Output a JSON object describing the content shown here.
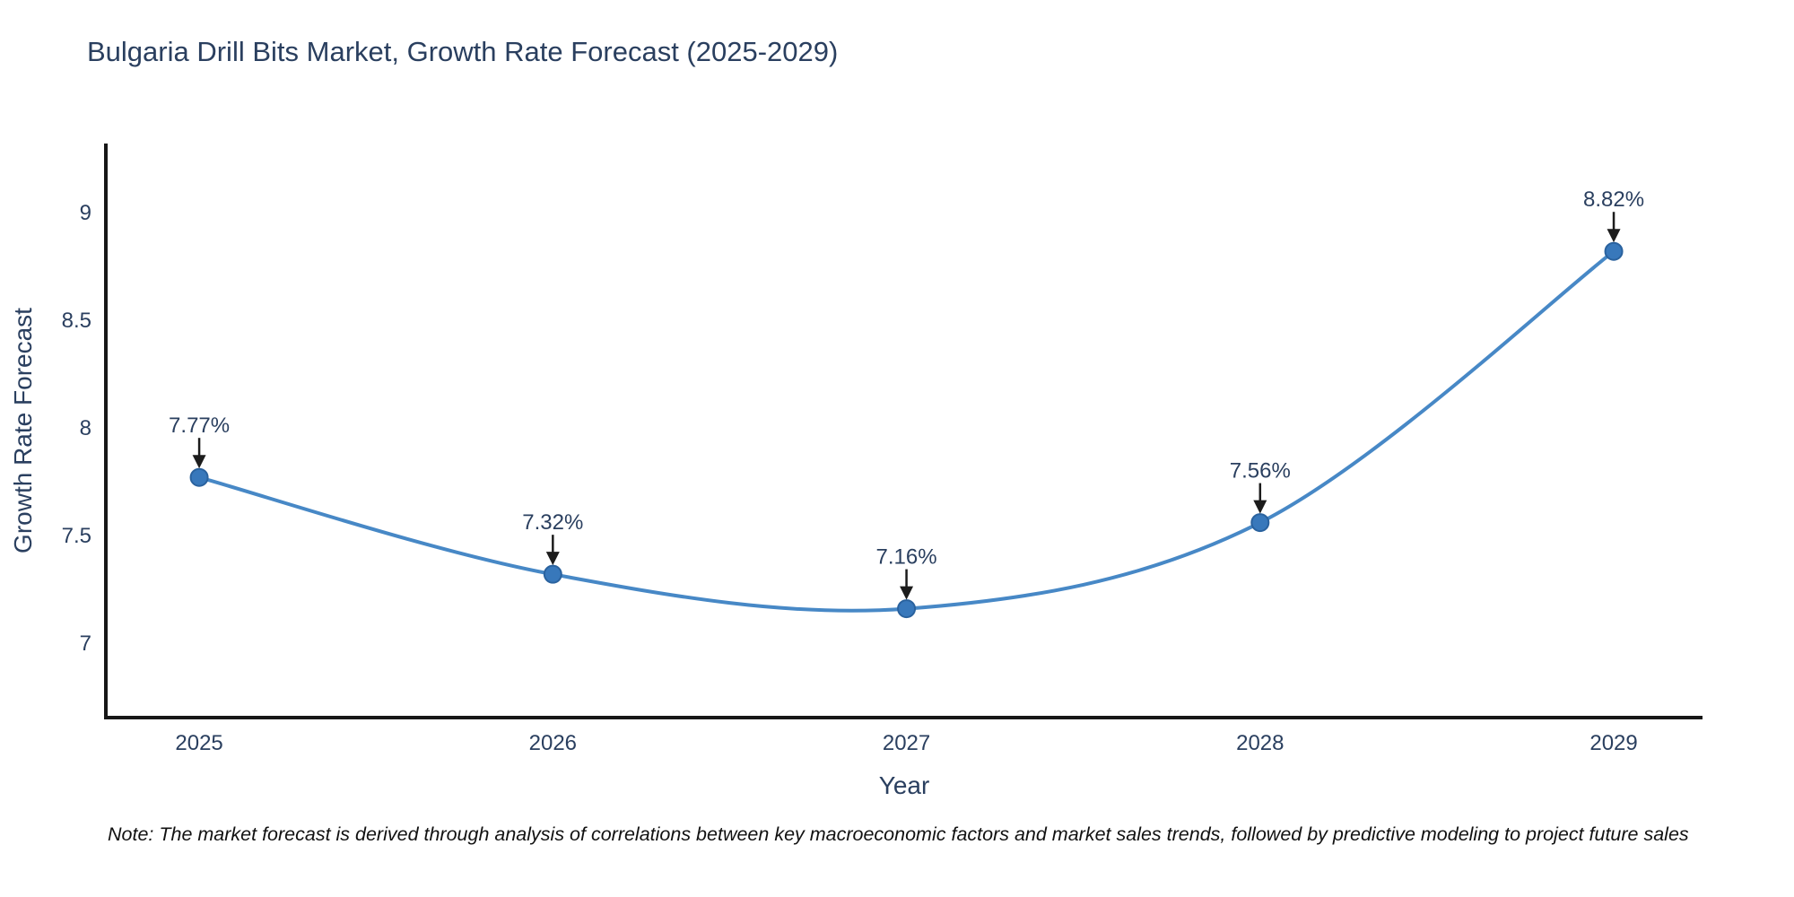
{
  "chart_data": {
    "type": "line",
    "title": "Bulgaria Drill Bits Market, Growth Rate Forecast (2025-2029)",
    "xlabel": "Year",
    "ylabel": "Growth Rate Forecast",
    "x": [
      2025,
      2026,
      2027,
      2028,
      2029
    ],
    "values": [
      7.77,
      7.32,
      7.16,
      7.56,
      8.82
    ],
    "point_labels": [
      "7.77%",
      "7.32%",
      "7.16%",
      "7.56%",
      "8.82%"
    ],
    "x_ticks": [
      2025,
      2026,
      2027,
      2028,
      2029
    ],
    "y_ticks": [
      7,
      7.5,
      8,
      8.5,
      9
    ],
    "xlim": [
      2024.736,
      2029.251
    ],
    "ylim": [
      6.654,
      9.321
    ],
    "line_shape": "spline",
    "grid": false,
    "legend": "none",
    "colors": {
      "line": "#4788c6",
      "marker_fill": "#3878bb",
      "marker_edge": "#2a629e",
      "axis_line": "#171717",
      "tick_label": "#2a3f5f",
      "title": "#2a3f5f",
      "annotation_text": "#2a3f5f",
      "annotation_arrow": "#1c1c1c"
    }
  },
  "note": "Note: The market forecast is derived through analysis of correlations between key macroeconomic factors and market sales trends, followed by predictive modeling to project future sales"
}
